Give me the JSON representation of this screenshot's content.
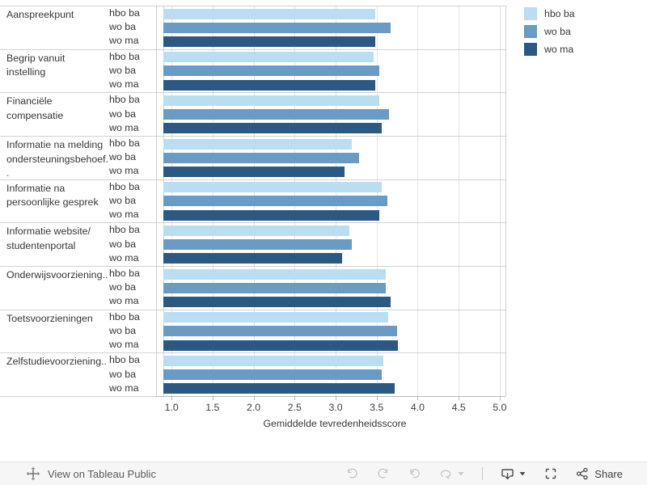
{
  "legend": {
    "items": [
      {
        "label": "hbo ba",
        "color": "#b9ddf1"
      },
      {
        "label": "wo ba",
        "color": "#6a9bc5"
      },
      {
        "label": "wo ma",
        "color": "#2b5983"
      }
    ]
  },
  "chart_data": {
    "type": "bar",
    "orientation": "horizontal",
    "title": "",
    "xlabel": "Gemiddelde tevredenheidsscore",
    "ylabel": "",
    "x_domain": [
      0.9,
      5.07
    ],
    "x_ticks": [
      "1.0",
      "1.5",
      "2.0",
      "2.5",
      "3.0",
      "3.5",
      "4.0",
      "4.5",
      "5.0"
    ],
    "grid": true,
    "legend_position": "top-right",
    "group_labels": [
      "hbo ba",
      "wo ba",
      "wo ma"
    ],
    "categories": [
      "Aanspreekpunt",
      "Begrip vanuit\ninstelling",
      "Financiële\ncompensatie",
      "Informatie na melding\nondersteuningsbehoef.\n.",
      "Informatie na\npersoonlijke gesprek",
      "Informatie website/\nstudentenportal",
      "Onderwijsvoorziening..",
      "Toetsvoorzieningen",
      "Zelfstudievoorziening.."
    ],
    "series": [
      {
        "name": "hbo ba",
        "color": "#b9ddf1",
        "values": [
          3.48,
          3.46,
          3.53,
          3.2,
          3.56,
          3.17,
          3.61,
          3.64,
          3.58
        ]
      },
      {
        "name": "wo ba",
        "color": "#6a9bc5",
        "values": [
          3.67,
          3.53,
          3.65,
          3.29,
          3.63,
          3.2,
          3.61,
          3.75,
          3.56
        ]
      },
      {
        "name": "wo ma",
        "color": "#2b5983",
        "values": [
          3.48,
          3.48,
          3.56,
          3.11,
          3.53,
          3.08,
          3.67,
          3.76,
          3.72
        ]
      }
    ]
  },
  "toolbar": {
    "view_on_label": "View on Tableau Public",
    "share_label": "Share"
  }
}
